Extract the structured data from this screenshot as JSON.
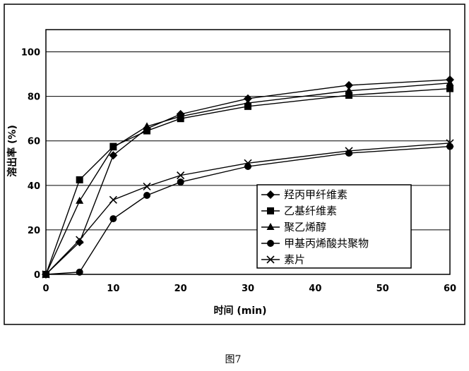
{
  "chart_data": {
    "type": "line",
    "xlabel": "时间 (min)",
    "ylabel": "溶出率 (%)",
    "xlim": [
      0,
      60
    ],
    "ylim": [
      0,
      110
    ],
    "xticks": [
      0,
      10,
      20,
      30,
      40,
      50,
      60
    ],
    "yticks": [
      0,
      20,
      40,
      60,
      80,
      100
    ],
    "grid": "horizontal",
    "legend_position": "bottom-right",
    "series": [
      {
        "name": "羟丙甲纤维素",
        "marker": "diamond",
        "x": [
          0,
          5,
          10,
          15,
          20,
          30,
          45,
          60
        ],
        "y": [
          0,
          14.5,
          53.5,
          65.5,
          72,
          79,
          85,
          87.5
        ]
      },
      {
        "name": "乙基纤维素",
        "marker": "square",
        "x": [
          0,
          5,
          10,
          15,
          20,
          30,
          45,
          60
        ],
        "y": [
          0,
          42.5,
          57.5,
          64.5,
          70,
          75.5,
          80.5,
          83.5
        ]
      },
      {
        "name": "聚乙烯醇",
        "marker": "triangle",
        "x": [
          0,
          5,
          10,
          15,
          20,
          30,
          45,
          60
        ],
        "y": [
          0,
          33,
          57,
          66.5,
          71,
          77,
          82.5,
          86
        ]
      },
      {
        "name": "甲基丙烯酸共聚物",
        "marker": "circle",
        "x": [
          0,
          5,
          10,
          15,
          20,
          30,
          45,
          60
        ],
        "y": [
          0,
          1,
          25,
          35.5,
          41.5,
          48.5,
          54.5,
          57.5
        ]
      },
      {
        "name": "素片",
        "marker": "cross",
        "x": [
          0,
          5,
          10,
          15,
          20,
          30,
          45,
          60
        ],
        "y": [
          0,
          15.5,
          33.5,
          39.5,
          44.5,
          50,
          55.5,
          59
        ]
      }
    ]
  },
  "caption": "图7"
}
